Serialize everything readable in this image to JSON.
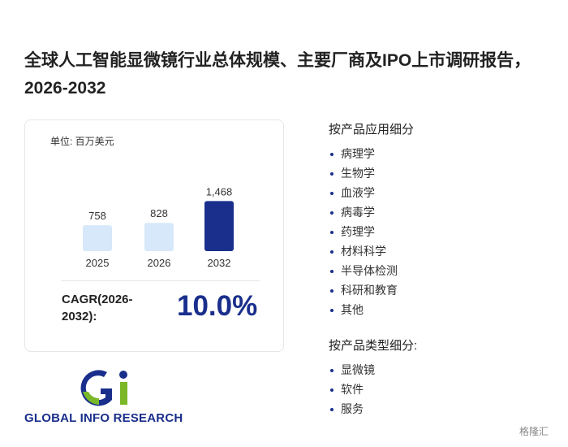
{
  "header": {
    "title": "全球人工智能显微镜行业总体规模、主要厂商及IPO上市调研报告，2026-2032"
  },
  "chart_data": {
    "type": "bar",
    "unit": "单位: 百万美元",
    "categories": [
      "2025",
      "2026",
      "2032"
    ],
    "values": [
      758,
      828,
      1468
    ],
    "value_labels": [
      "758",
      "828",
      "1,468"
    ],
    "colors": [
      "#d6e8fa",
      "#d6e8fa",
      "#1a2f8c"
    ]
  },
  "cagr": {
    "label": "CAGR(2026-2032):",
    "value": "10.0%"
  },
  "sections": [
    {
      "title": "按产品应用细分",
      "items": [
        "病理学",
        "生物学",
        "血液学",
        "病毒学",
        "药理学",
        "材料科学",
        "半导体检测",
        "科研和教育",
        "其他"
      ]
    },
    {
      "title": "按产品类型细分:",
      "items": [
        "显微镜",
        "软件",
        "服务"
      ]
    }
  ],
  "logo": {
    "text": "GLOBAL INFO RESEARCH"
  },
  "watermark": "格隆汇"
}
